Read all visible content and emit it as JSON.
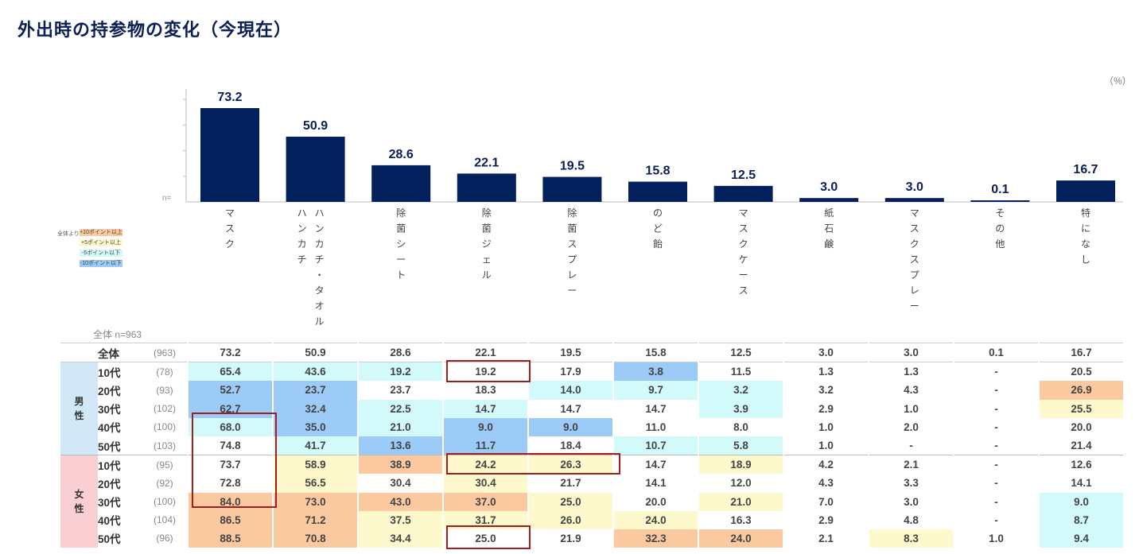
{
  "title": "外出時の持参物の変化（今現在）",
  "unit": "（%）",
  "axis_n_label": "n=",
  "legend": {
    "label": "全体より",
    "items": [
      {
        "label": "+10ポイント以上",
        "cls": "p10",
        "color": "#fbc99f"
      },
      {
        "label": "+5ポイント以上",
        "cls": "p5",
        "color": "#fef9cc"
      },
      {
        "label": "-5ポイント以下",
        "cls": "m5",
        "color": "#d2fafa"
      },
      {
        "label": "-10ポイント以下",
        "cls": "m10",
        "color": "#9ccbf7"
      }
    ]
  },
  "overall_n_label": "全体 n=963",
  "chart_data": {
    "type": "bar",
    "title": "外出時の持参物の変化（今現在）",
    "categories": [
      "マスク",
      "ハンカチ・タオル",
      "除菌シート",
      "除菌ジェル",
      "除菌スプレー",
      "のど飴",
      "マスクケース",
      "紙石鹸",
      "マスクスプレー",
      "その他",
      "特になし"
    ],
    "category_lines": [
      [
        "マ",
        "ス",
        "ク"
      ],
      [
        [
          "ハ",
          "ン",
          "カ",
          "チ"
        ],
        [
          "ハ",
          "ン",
          "カ",
          "チ",
          "・",
          "タ",
          "オ",
          "ル"
        ]
      ],
      [
        "除",
        "菌",
        "シ",
        "ー",
        "ト"
      ],
      [
        "除",
        "菌",
        "ジ",
        "ェ",
        "ル"
      ],
      [
        "除",
        "菌",
        "ス",
        "プ",
        "レ",
        "ー"
      ],
      [
        "の",
        "ど",
        "飴"
      ],
      [
        "マ",
        "ス",
        "ク",
        "ケ",
        "ー",
        "ス"
      ],
      [
        "紙",
        "石",
        "鹸"
      ],
      [
        "マ",
        "ス",
        "ク",
        "ス",
        "プ",
        "レ",
        "ー"
      ],
      [
        "そ",
        "の",
        "他"
      ],
      [
        "特",
        "に",
        "な",
        "し"
      ]
    ],
    "values": [
      73.2,
      50.9,
      28.6,
      22.1,
      19.5,
      15.8,
      12.5,
      3.0,
      3.0,
      0.1,
      16.7
    ],
    "value_labels": [
      "73.2",
      "50.9",
      "28.6",
      "22.1",
      "19.5",
      "15.8",
      "12.5",
      "3.0",
      "3.0",
      "0.1",
      "16.7"
    ],
    "ylabel": "%",
    "ylim": [
      0,
      80
    ],
    "color": "#02205c",
    "table": {
      "segments": [
        {
          "label": "",
          "rows": [
            {
              "age": "全体",
              "n": "(963)",
              "values": [
                "73.2",
                "50.9",
                "28.6",
                "22.1",
                "19.5",
                "15.8",
                "12.5",
                "3.0",
                "3.0",
                "0.1",
                "16.7"
              ],
              "colors": [
                "",
                "",
                "",
                "",
                "",
                "",
                "",
                "",
                "",
                "",
                ""
              ]
            }
          ]
        },
        {
          "label": "男性",
          "rows": [
            {
              "age": "10代",
              "n": "(78)",
              "values": [
                "65.4",
                "43.6",
                "19.2",
                "19.2",
                "17.9",
                "3.8",
                "11.5",
                "1.3",
                "1.3",
                "-",
                "20.5"
              ],
              "colors": [
                "m5",
                "m5",
                "m5",
                "",
                "",
                "m10",
                "",
                "",
                "",
                "",
                ""
              ]
            },
            {
              "age": "20代",
              "n": "(93)",
              "values": [
                "52.7",
                "23.7",
                "23.7",
                "18.3",
                "14.0",
                "9.7",
                "3.2",
                "3.2",
                "4.3",
                "-",
                "26.9"
              ],
              "colors": [
                "m10",
                "m10",
                "",
                "",
                "m5",
                "m5",
                "m5",
                "",
                "",
                "",
                "p10"
              ]
            },
            {
              "age": "30代",
              "n": "(102)",
              "values": [
                "62.7",
                "32.4",
                "22.5",
                "14.7",
                "14.7",
                "14.7",
                "3.9",
                "2.9",
                "1.0",
                "-",
                "25.5"
              ],
              "colors": [
                "m10",
                "m10",
                "m5",
                "m5",
                "",
                "",
                "m5",
                "",
                "",
                "",
                "p5"
              ]
            },
            {
              "age": "40代",
              "n": "(100)",
              "values": [
                "68.0",
                "35.0",
                "21.0",
                "9.0",
                "9.0",
                "11.0",
                "8.0",
                "1.0",
                "2.0",
                "-",
                "20.0"
              ],
              "colors": [
                "m5",
                "m10",
                "m5",
                "m10",
                "m10",
                "",
                "",
                "",
                "",
                "",
                ""
              ]
            },
            {
              "age": "50代",
              "n": "(103)",
              "values": [
                "74.8",
                "41.7",
                "13.6",
                "11.7",
                "18.4",
                "10.7",
                "5.8",
                "1.0",
                "-",
                "-",
                "21.4"
              ],
              "colors": [
                "",
                "m5",
                "m10",
                "m10",
                "",
                "m5",
                "m5",
                "",
                "",
                "",
                ""
              ]
            }
          ]
        },
        {
          "label": "女性",
          "rows": [
            {
              "age": "10代",
              "n": "(95)",
              "values": [
                "73.7",
                "58.9",
                "38.9",
                "24.2",
                "26.3",
                "14.7",
                "18.9",
                "4.2",
                "2.1",
                "-",
                "12.6"
              ],
              "colors": [
                "",
                "p5",
                "p10",
                "p5",
                "p5",
                "",
                "p5",
                "",
                "",
                "",
                ""
              ]
            },
            {
              "age": "20代",
              "n": "(92)",
              "values": [
                "72.8",
                "56.5",
                "30.4",
                "30.4",
                "21.7",
                "14.1",
                "12.0",
                "4.3",
                "3.3",
                "-",
                "14.1"
              ],
              "colors": [
                "",
                "p5",
                "",
                "p5",
                "",
                "",
                "",
                "",
                "",
                "",
                ""
              ]
            },
            {
              "age": "30代",
              "n": "(100)",
              "values": [
                "84.0",
                "73.0",
                "43.0",
                "37.0",
                "25.0",
                "20.0",
                "21.0",
                "7.0",
                "3.0",
                "-",
                "9.0"
              ],
              "colors": [
                "p10",
                "p10",
                "p10",
                "p10",
                "p5",
                "",
                "p5",
                "",
                "",
                "",
                "m5"
              ]
            },
            {
              "age": "40代",
              "n": "(104)",
              "values": [
                "86.5",
                "71.2",
                "37.5",
                "31.7",
                "26.0",
                "24.0",
                "16.3",
                "2.9",
                "4.8",
                "-",
                "8.7"
              ],
              "colors": [
                "p10",
                "p10",
                "p5",
                "p5",
                "p5",
                "p5",
                "",
                "",
                "",
                "",
                "m5"
              ]
            },
            {
              "age": "50代",
              "n": "(96)",
              "values": [
                "88.5",
                "70.8",
                "34.4",
                "25.0",
                "21.9",
                "32.3",
                "24.0",
                "2.1",
                "8.3",
                "1.0",
                "9.4"
              ],
              "colors": [
                "p10",
                "p10",
                "p5",
                "",
                "",
                "p10",
                "p10",
                "",
                "p5",
                "",
                "m5"
              ]
            }
          ]
        }
      ]
    }
  }
}
